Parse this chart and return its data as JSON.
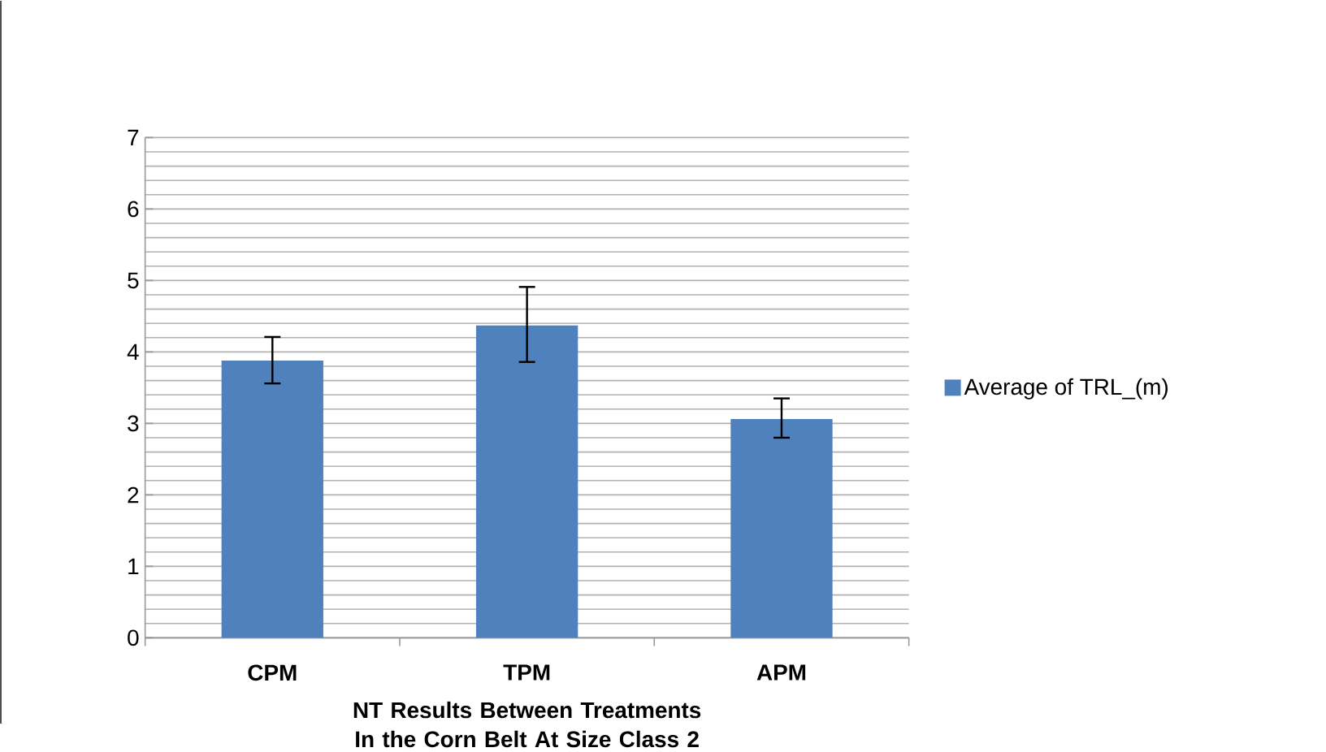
{
  "chart_data": {
    "type": "bar",
    "xlabel": "NT Results Between Treatments In the Corn Belt At Size Class 2",
    "categories": [
      "CPM",
      "TPM",
      "APM"
    ],
    "series": [
      {
        "name": "Average of TRL_(m)",
        "color": "#4f81bd",
        "values": [
          3.88,
          4.37,
          3.06
        ],
        "errors": [
          [
            3.56,
            4.21
          ],
          [
            3.86,
            4.91
          ],
          [
            2.8,
            3.35
          ]
        ]
      }
    ],
    "ylim": [
      0,
      7
    ],
    "yticks": [
      0,
      1,
      2,
      3,
      4,
      5,
      6,
      7
    ],
    "grid": "y",
    "legend": "right"
  }
}
